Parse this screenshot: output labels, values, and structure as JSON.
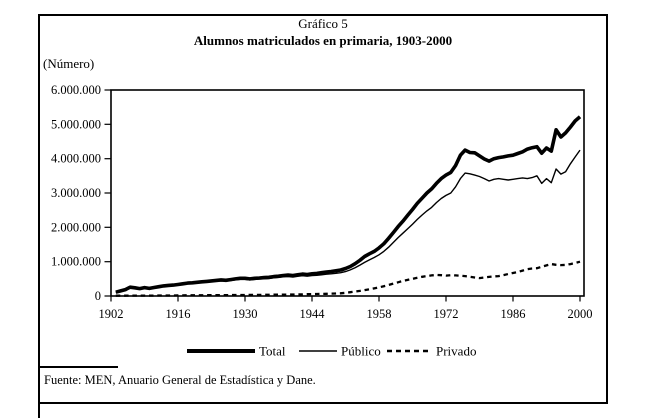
{
  "figure": {
    "title": "Gráfico 5",
    "subtitle": "Alumnos matriculados en primaria, 1903-2000",
    "unit_label": "(Número)",
    "source_note": "Fuente: MEN, Anuario General de Estadística  y Dane."
  },
  "colors": {
    "ink": "#000000",
    "background": "#ffffff"
  },
  "chart_data": {
    "type": "line",
    "title": "Alumnos matriculados en primaria, 1903-2000",
    "ylabel": "(Número)",
    "xlim": [
      1902,
      2000
    ],
    "ylim": [
      0,
      6000000
    ],
    "grid": false,
    "legend_position": "bottom-center",
    "x_ticks": [
      1902,
      1916,
      1930,
      1944,
      1958,
      1972,
      1986,
      2000
    ],
    "x_tick_labels": [
      "1902",
      "1916",
      "1930",
      "1944",
      "1958",
      "1972",
      "1986",
      "2000"
    ],
    "y_ticks": [
      0,
      1000000,
      2000000,
      3000000,
      4000000,
      5000000,
      6000000
    ],
    "y_tick_labels": [
      "0",
      "1.000.000",
      "2.000.000",
      "3.000.000",
      "4.000.000",
      "5.000.000",
      "6.000.000"
    ],
    "x": [
      1903,
      1904,
      1905,
      1906,
      1907,
      1908,
      1909,
      1910,
      1911,
      1912,
      1913,
      1914,
      1915,
      1916,
      1917,
      1918,
      1919,
      1920,
      1921,
      1922,
      1923,
      1924,
      1925,
      1926,
      1927,
      1928,
      1929,
      1930,
      1931,
      1932,
      1933,
      1934,
      1935,
      1936,
      1937,
      1938,
      1939,
      1940,
      1941,
      1942,
      1943,
      1944,
      1945,
      1946,
      1947,
      1948,
      1949,
      1950,
      1951,
      1952,
      1953,
      1954,
      1955,
      1956,
      1957,
      1958,
      1959,
      1960,
      1961,
      1962,
      1963,
      1964,
      1965,
      1966,
      1967,
      1968,
      1969,
      1970,
      1971,
      1972,
      1973,
      1974,
      1975,
      1976,
      1977,
      1978,
      1979,
      1980,
      1981,
      1982,
      1983,
      1984,
      1985,
      1986,
      1987,
      1988,
      1989,
      1990,
      1991,
      1992,
      1993,
      1994,
      1995,
      1996,
      1997,
      1998,
      1999,
      2000
    ],
    "series": [
      {
        "name": "Total",
        "line_style": "thick-solid",
        "color": "#000000",
        "values": [
          110000,
          150000,
          185000,
          255000,
          240000,
          215000,
          245000,
          222000,
          248000,
          270000,
          295000,
          310000,
          318000,
          335000,
          355000,
          375000,
          385000,
          400000,
          415000,
          425000,
          440000,
          455000,
          468000,
          458000,
          478000,
          498000,
          515000,
          516000,
          498000,
          515000,
          525000,
          535000,
          545000,
          565000,
          578000,
          598000,
          608000,
          596000,
          618000,
          638000,
          626000,
          648000,
          658000,
          678000,
          698000,
          715000,
          735000,
          758000,
          800000,
          860000,
          940000,
          1040000,
          1150000,
          1230000,
          1300000,
          1400000,
          1520000,
          1680000,
          1850000,
          2020000,
          2180000,
          2350000,
          2520000,
          2700000,
          2850000,
          3000000,
          3120000,
          3280000,
          3420000,
          3520000,
          3600000,
          3800000,
          4100000,
          4250000,
          4180000,
          4170000,
          4080000,
          3990000,
          3930000,
          4000000,
          4030000,
          4050000,
          4080000,
          4100000,
          4150000,
          4200000,
          4280000,
          4320000,
          4350000,
          4160000,
          4310000,
          4220000,
          4840000,
          4630000,
          4750000,
          4920000,
          5100000,
          5220000
        ]
      },
      {
        "name": "Público",
        "line_style": "thin-solid",
        "color": "#000000",
        "values": [
          105000,
          143000,
          177000,
          245000,
          230000,
          205000,
          235000,
          212000,
          237000,
          258000,
          282000,
          296000,
          304000,
          320000,
          339000,
          358000,
          367000,
          381000,
          395000,
          404000,
          418000,
          432000,
          444000,
          433000,
          452000,
          471000,
          487000,
          487000,
          468000,
          484000,
          493000,
          502000,
          510000,
          529000,
          541000,
          559000,
          566000,
          553000,
          573000,
          591000,
          576000,
          595000,
          602000,
          618000,
          634000,
          647000,
          662000,
          680000,
          712000,
          760000,
          825000,
          900000,
          980000,
          1050000,
          1120000,
          1200000,
          1300000,
          1420000,
          1560000,
          1700000,
          1830000,
          1960000,
          2090000,
          2230000,
          2360000,
          2480000,
          2580000,
          2720000,
          2840000,
          2930000,
          3000000,
          3180000,
          3420000,
          3580000,
          3560000,
          3520000,
          3480000,
          3420000,
          3350000,
          3400000,
          3420000,
          3400000,
          3380000,
          3400000,
          3420000,
          3440000,
          3420000,
          3450000,
          3500000,
          3280000,
          3420000,
          3300000,
          3700000,
          3550000,
          3620000,
          3850000,
          4050000,
          4250000
        ]
      },
      {
        "name": "Privado",
        "line_style": "dashed",
        "color": "#000000",
        "values": [
          8000,
          9000,
          10000,
          11000,
          11000,
          12000,
          12000,
          13000,
          13000,
          14000,
          15000,
          15000,
          16000,
          17000,
          18000,
          19000,
          19000,
          20000,
          21000,
          22000,
          23000,
          24000,
          25000,
          26000,
          27000,
          28000,
          29000,
          30000,
          31000,
          32000,
          33000,
          34000,
          36000,
          37000,
          39000,
          40000,
          42000,
          44000,
          46000,
          48000,
          51000,
          54000,
          57000,
          61000,
          65000,
          69000,
          74000,
          79000,
          92000,
          110000,
          128000,
          150000,
          172000,
          195000,
          220000,
          250000,
          285000,
          320000,
          360000,
          400000,
          440000,
          470000,
          500000,
          530000,
          560000,
          580000,
          600000,
          615000,
          605000,
          595000,
          605000,
          600000,
          590000,
          580000,
          560000,
          540000,
          520000,
          540000,
          555000,
          570000,
          580000,
          610000,
          640000,
          670000,
          700000,
          740000,
          780000,
          800000,
          810000,
          850000,
          890000,
          930000,
          910000,
          900000,
          905000,
          930000,
          960000,
          1000000
        ]
      }
    ]
  }
}
